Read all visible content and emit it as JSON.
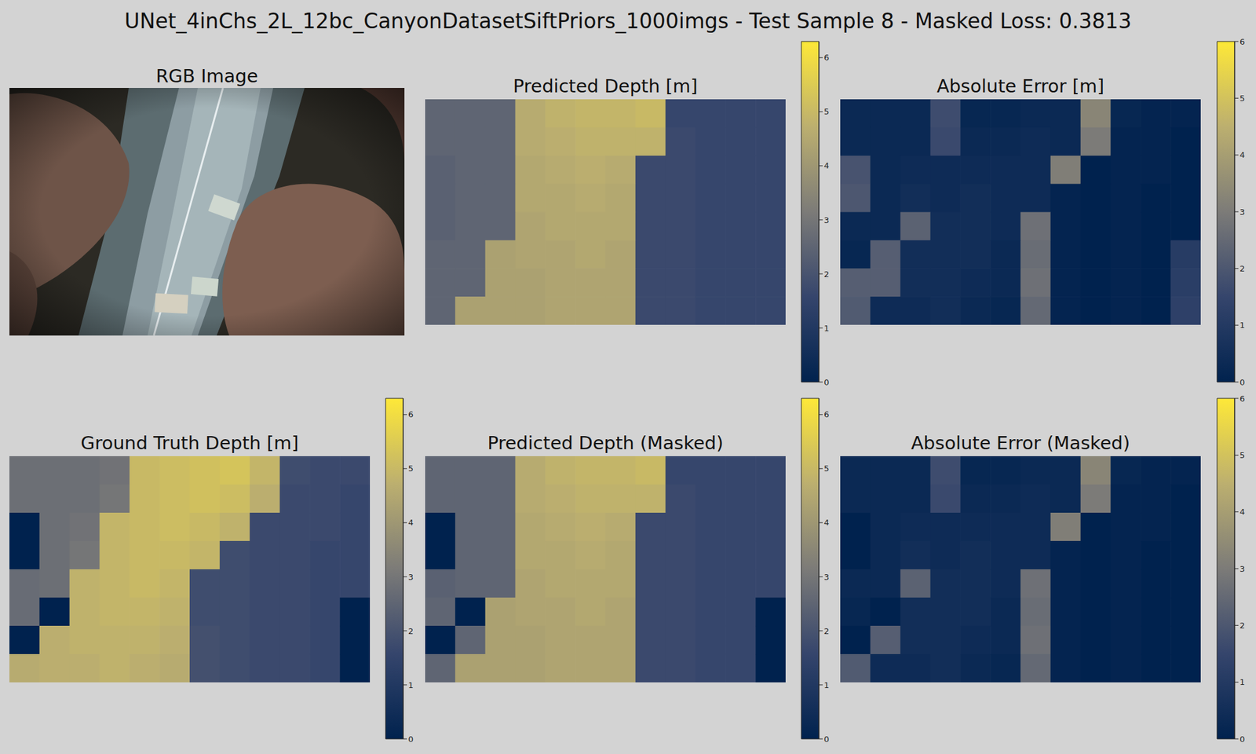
{
  "title": "UNet_4inChs_2L_12bc_CanyonDatasetSiftPriors_1000imgs - Test Sample 8 - Masked Loss: 0.3813",
  "chart_data": [
    {
      "type": "image",
      "title": "RGB Image"
    },
    {
      "type": "heatmap",
      "title": "Predicted Depth [m]",
      "color": "cividis",
      "tick_labels": false,
      "color_range": [
        0,
        6.3
      ],
      "color_ticks": [
        0,
        1,
        2,
        3,
        4,
        5,
        6
      ],
      "cells": [
        [
          2.5,
          2.5,
          2.5,
          4.6,
          4.8,
          4.9,
          4.9,
          5.0,
          1.6,
          1.6,
          1.6,
          1.6
        ],
        [
          2.5,
          2.5,
          2.5,
          4.6,
          4.7,
          4.8,
          4.8,
          4.8,
          1.7,
          1.6,
          1.6,
          1.6
        ],
        [
          2.4,
          2.5,
          2.5,
          4.5,
          4.6,
          4.7,
          4.6,
          1.7,
          1.7,
          1.6,
          1.6,
          1.6
        ],
        [
          2.4,
          2.5,
          2.5,
          4.5,
          4.5,
          4.6,
          4.5,
          1.7,
          1.7,
          1.6,
          1.6,
          1.6
        ],
        [
          2.4,
          2.5,
          2.5,
          4.4,
          4.5,
          4.5,
          4.5,
          1.7,
          1.7,
          1.6,
          1.6,
          1.6
        ],
        [
          2.5,
          2.5,
          4.3,
          4.4,
          4.4,
          4.5,
          4.4,
          1.7,
          1.7,
          1.6,
          1.6,
          1.6
        ],
        [
          2.5,
          2.5,
          4.3,
          4.3,
          4.4,
          4.4,
          4.4,
          1.7,
          1.7,
          1.6,
          1.6,
          1.6
        ],
        [
          2.5,
          4.3,
          4.3,
          4.3,
          4.4,
          4.4,
          4.4,
          1.7,
          1.7,
          1.6,
          1.6,
          1.6
        ]
      ]
    },
    {
      "type": "heatmap",
      "title": "Absolute Error [m]",
      "color": "cividis",
      "tick_labels": false,
      "color_range": [
        0,
        6
      ],
      "color_ticks": [
        0,
        1,
        2,
        3,
        4,
        5,
        6
      ],
      "cells": [
        [
          0.3,
          0.3,
          0.3,
          1.7,
          0.2,
          0.2,
          0.3,
          0.3,
          3.3,
          0.2,
          0.1,
          0.1
        ],
        [
          0.3,
          0.3,
          0.3,
          1.6,
          0.3,
          0.3,
          0.4,
          0.3,
          3.0,
          0.1,
          0.1,
          0.0
        ],
        [
          1.9,
          0.3,
          0.4,
          0.4,
          0.4,
          0.4,
          0.4,
          3.1,
          0.0,
          0.1,
          0.1,
          0.0
        ],
        [
          2.0,
          0.3,
          0.5,
          0.4,
          0.5,
          0.4,
          0.4,
          0.1,
          0.0,
          0.1,
          0.0,
          0.0
        ],
        [
          0.3,
          0.3,
          2.3,
          0.5,
          0.5,
          0.4,
          2.7,
          0.1,
          0.0,
          0.1,
          0.0,
          0.0
        ],
        [
          0.2,
          2.2,
          0.5,
          0.5,
          0.5,
          0.3,
          2.6,
          0.1,
          0.0,
          0.1,
          0.0,
          1.1
        ],
        [
          2.2,
          2.2,
          0.5,
          0.5,
          0.4,
          0.3,
          2.7,
          0.1,
          0.0,
          0.1,
          0.0,
          1.2
        ],
        [
          2.1,
          0.4,
          0.4,
          0.5,
          0.3,
          0.2,
          2.5,
          0.1,
          0.0,
          0.1,
          0.0,
          1.3
        ]
      ]
    },
    {
      "type": "heatmap",
      "title": "Ground Truth Depth [m]",
      "color": "cividis",
      "tick_labels": false,
      "color_range": [
        0,
        6.3
      ],
      "color_ticks": [
        0,
        1,
        2,
        3,
        4,
        5,
        6
      ],
      "cells": [
        [
          2.8,
          2.8,
          2.8,
          2.9,
          5.0,
          5.1,
          5.2,
          5.3,
          4.9,
          1.8,
          1.7,
          1.7
        ],
        [
          2.8,
          2.8,
          2.8,
          3.0,
          5.0,
          5.1,
          5.2,
          5.1,
          4.7,
          1.7,
          1.7,
          1.6
        ],
        [
          0,
          2.8,
          2.9,
          4.9,
          5.0,
          5.1,
          5.0,
          4.8,
          1.7,
          1.7,
          1.7,
          1.6
        ],
        [
          0,
          2.8,
          3.0,
          4.9,
          5.0,
          5.0,
          4.9,
          1.8,
          1.7,
          1.7,
          1.6,
          1.6
        ],
        [
          2.7,
          2.8,
          4.8,
          4.9,
          5.0,
          4.9,
          1.8,
          1.8,
          1.7,
          1.7,
          1.6,
          1.6
        ],
        [
          2.7,
          0,
          4.8,
          4.9,
          4.9,
          4.8,
          1.8,
          1.8,
          1.7,
          1.7,
          1.6,
          0
        ],
        [
          0,
          4.7,
          4.8,
          4.8,
          4.8,
          4.7,
          1.9,
          1.8,
          1.7,
          1.7,
          1.6,
          0
        ],
        [
          4.6,
          4.7,
          4.7,
          4.8,
          4.7,
          4.6,
          1.9,
          1.8,
          1.7,
          1.7,
          1.6,
          0
        ]
      ]
    },
    {
      "type": "heatmap",
      "title": "Predicted Depth (Masked)",
      "color": "cividis",
      "tick_labels": false,
      "color_range": [
        0,
        6.3
      ],
      "color_ticks": [
        0,
        1,
        2,
        3,
        4,
        5,
        6
      ],
      "cells": [
        [
          2.5,
          2.5,
          2.5,
          4.6,
          4.8,
          4.9,
          4.9,
          5.0,
          1.6,
          1.6,
          1.6,
          1.6
        ],
        [
          2.5,
          2.5,
          2.5,
          4.6,
          4.7,
          4.8,
          4.8,
          4.8,
          1.7,
          1.6,
          1.6,
          1.6
        ],
        [
          0,
          2.5,
          2.5,
          4.5,
          4.6,
          4.7,
          4.6,
          1.7,
          1.7,
          1.6,
          1.6,
          1.6
        ],
        [
          0,
          2.5,
          2.5,
          4.5,
          4.5,
          4.6,
          4.5,
          1.7,
          1.7,
          1.6,
          1.6,
          1.6
        ],
        [
          2.4,
          2.5,
          2.5,
          4.4,
          4.5,
          4.5,
          4.5,
          1.7,
          1.7,
          1.6,
          1.6,
          1.6
        ],
        [
          2.5,
          0,
          4.3,
          4.4,
          4.4,
          4.5,
          4.4,
          1.7,
          1.7,
          1.6,
          1.6,
          0
        ],
        [
          0,
          2.5,
          4.3,
          4.3,
          4.4,
          4.4,
          4.4,
          1.7,
          1.7,
          1.6,
          1.6,
          0
        ],
        [
          2.5,
          4.3,
          4.3,
          4.3,
          4.4,
          4.4,
          4.4,
          1.7,
          1.7,
          1.6,
          1.6,
          0
        ]
      ]
    },
    {
      "type": "heatmap",
      "title": "Absolute Error (Masked)",
      "color": "cividis",
      "tick_labels": false,
      "color_range": [
        0,
        6
      ],
      "color_ticks": [
        0,
        1,
        2,
        3,
        4,
        5,
        6
      ],
      "cells": [
        [
          0.3,
          0.3,
          0.3,
          1.7,
          0.2,
          0.2,
          0.3,
          0.3,
          3.3,
          0.2,
          0.1,
          0.1
        ],
        [
          0.3,
          0.3,
          0.3,
          1.6,
          0.3,
          0.3,
          0.4,
          0.3,
          3.0,
          0.1,
          0.1,
          0.0
        ],
        [
          0,
          0.3,
          0.4,
          0.4,
          0.4,
          0.4,
          0.4,
          3.1,
          0.0,
          0.1,
          0.1,
          0.0
        ],
        [
          0,
          0.3,
          0.5,
          0.4,
          0.5,
          0.4,
          0.4,
          0.1,
          0.0,
          0.1,
          0.0,
          0.0
        ],
        [
          0.3,
          0.3,
          2.3,
          0.5,
          0.5,
          0.4,
          2.7,
          0.1,
          0.0,
          0.1,
          0.0,
          0.0
        ],
        [
          0.2,
          0,
          0.5,
          0.5,
          0.5,
          0.3,
          2.6,
          0.1,
          0.0,
          0.1,
          0.0,
          0
        ],
        [
          0,
          2.2,
          0.5,
          0.5,
          0.4,
          0.3,
          2.7,
          0.1,
          0.0,
          0.1,
          0.0,
          0
        ],
        [
          2.1,
          0.4,
          0.4,
          0.5,
          0.3,
          0.2,
          2.5,
          0.1,
          0.0,
          0.1,
          0.0,
          0
        ]
      ]
    }
  ]
}
